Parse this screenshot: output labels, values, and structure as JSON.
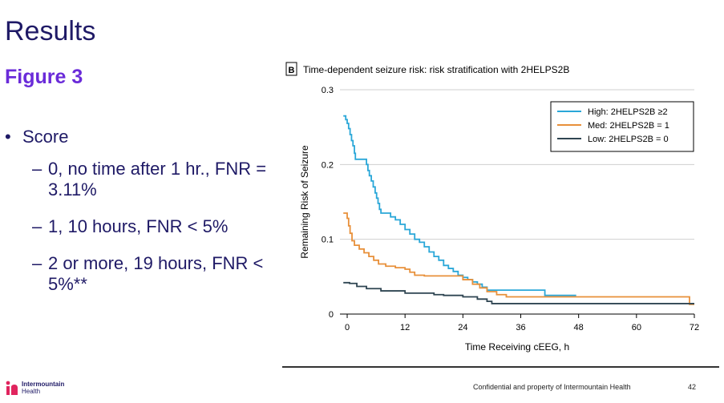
{
  "slide": {
    "title": "Results",
    "figure_label": "Figure 3",
    "bullet": "Score",
    "sub_bullets": [
      "0, no time after 1 hr., FNR = 3.11%",
      "1, 10 hours, FNR < 5%",
      "2 or more, 19 hours, FNR < 5%**"
    ],
    "footer": "Confidential and property of Intermountain Health",
    "page_number": "42",
    "logo_name": "Intermountain",
    "logo_sub": "Health"
  },
  "chart_data": {
    "type": "line",
    "panel_letter": "B",
    "title": "Time-dependent seizure risk: risk stratification with 2HELPS2B",
    "xlabel": "Time Receiving cEEG, h",
    "ylabel": "Remaining Risk of Seizure",
    "xlim": [
      -1.5,
      72
    ],
    "ylim": [
      0,
      0.3
    ],
    "xticks": [
      0,
      12,
      24,
      36,
      48,
      60,
      72
    ],
    "yticks": [
      0,
      0.1,
      0.2,
      0.3
    ],
    "ytick_labels": [
      "0",
      "0.1",
      "0.2",
      "0.3"
    ],
    "grid": "horizontal",
    "legend_position": "top-right",
    "series": [
      {
        "name": "High: 2HELPS2B ≥2",
        "color": "#2aa7d8",
        "step": true,
        "points": [
          [
            -0.8,
            0.265
          ],
          [
            -0.3,
            0.26
          ],
          [
            0,
            0.255
          ],
          [
            0.3,
            0.248
          ],
          [
            0.6,
            0.24
          ],
          [
            0.9,
            0.232
          ],
          [
            1.2,
            0.225
          ],
          [
            1.5,
            0.215
          ],
          [
            1.7,
            0.207
          ],
          [
            4,
            0.2
          ],
          [
            4.3,
            0.192
          ],
          [
            4.6,
            0.185
          ],
          [
            5,
            0.178
          ],
          [
            5.4,
            0.17
          ],
          [
            5.8,
            0.162
          ],
          [
            6.1,
            0.155
          ],
          [
            6.4,
            0.148
          ],
          [
            6.7,
            0.14
          ],
          [
            7,
            0.135
          ],
          [
            9,
            0.13
          ],
          [
            10,
            0.126
          ],
          [
            11,
            0.12
          ],
          [
            12,
            0.113
          ],
          [
            13,
            0.107
          ],
          [
            14,
            0.1
          ],
          [
            15,
            0.096
          ],
          [
            16,
            0.09
          ],
          [
            17,
            0.083
          ],
          [
            18,
            0.077
          ],
          [
            19,
            0.072
          ],
          [
            20,
            0.065
          ],
          [
            21,
            0.061
          ],
          [
            22,
            0.057
          ],
          [
            23,
            0.052
          ],
          [
            24,
            0.049
          ],
          [
            25,
            0.046
          ],
          [
            26,
            0.043
          ],
          [
            27,
            0.04
          ],
          [
            28,
            0.036
          ],
          [
            29,
            0.032
          ],
          [
            41,
            0.025
          ],
          [
            47.5,
            0.025
          ]
        ]
      },
      {
        "name": "Med: 2HELPS2B = 1",
        "color": "#e8903a",
        "step": true,
        "points": [
          [
            -0.8,
            0.135
          ],
          [
            0,
            0.128
          ],
          [
            0.3,
            0.118
          ],
          [
            0.6,
            0.108
          ],
          [
            1,
            0.098
          ],
          [
            1.5,
            0.092
          ],
          [
            2.5,
            0.087
          ],
          [
            3.5,
            0.082
          ],
          [
            4.5,
            0.077
          ],
          [
            5.5,
            0.072
          ],
          [
            6.5,
            0.067
          ],
          [
            8,
            0.064
          ],
          [
            10,
            0.062
          ],
          [
            12,
            0.06
          ],
          [
            13,
            0.056
          ],
          [
            14,
            0.052
          ],
          [
            16,
            0.051
          ],
          [
            24,
            0.046
          ],
          [
            26,
            0.04
          ],
          [
            27.5,
            0.035
          ],
          [
            29,
            0.03
          ],
          [
            31,
            0.026
          ],
          [
            33,
            0.023
          ],
          [
            71,
            0.013
          ],
          [
            72,
            0.013
          ]
        ]
      },
      {
        "name": "Low: 2HELPS2B = 0",
        "color": "#2f4552",
        "step": true,
        "points": [
          [
            -0.8,
            0.042
          ],
          [
            0.5,
            0.041
          ],
          [
            2,
            0.037
          ],
          [
            4,
            0.034
          ],
          [
            7,
            0.031
          ],
          [
            12,
            0.028
          ],
          [
            18,
            0.026
          ],
          [
            20,
            0.025
          ],
          [
            24,
            0.023
          ],
          [
            27,
            0.02
          ],
          [
            29,
            0.017
          ],
          [
            30,
            0.014
          ],
          [
            72,
            0.014
          ]
        ]
      }
    ]
  }
}
